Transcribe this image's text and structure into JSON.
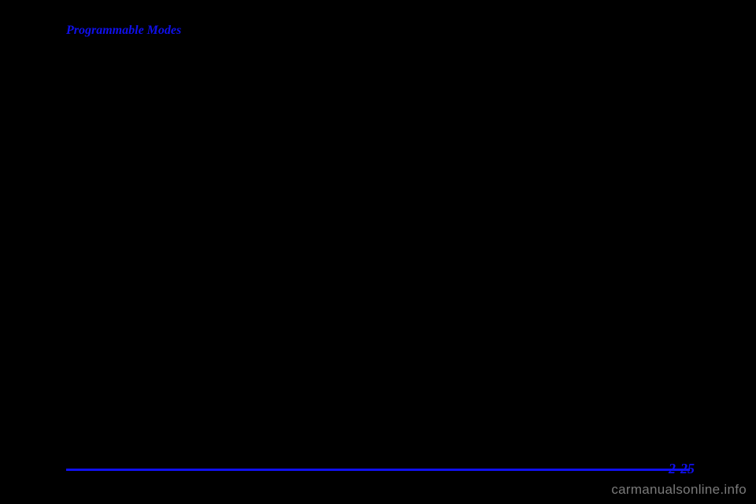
{
  "heading": {
    "text": "Programmable Modes"
  },
  "page": {
    "number": "2-25"
  },
  "watermark": {
    "text": "carmanualsonline.info"
  },
  "colors": {
    "accent": "#1010ee",
    "background": "#000000",
    "watermark": "#7a7a7a"
  }
}
